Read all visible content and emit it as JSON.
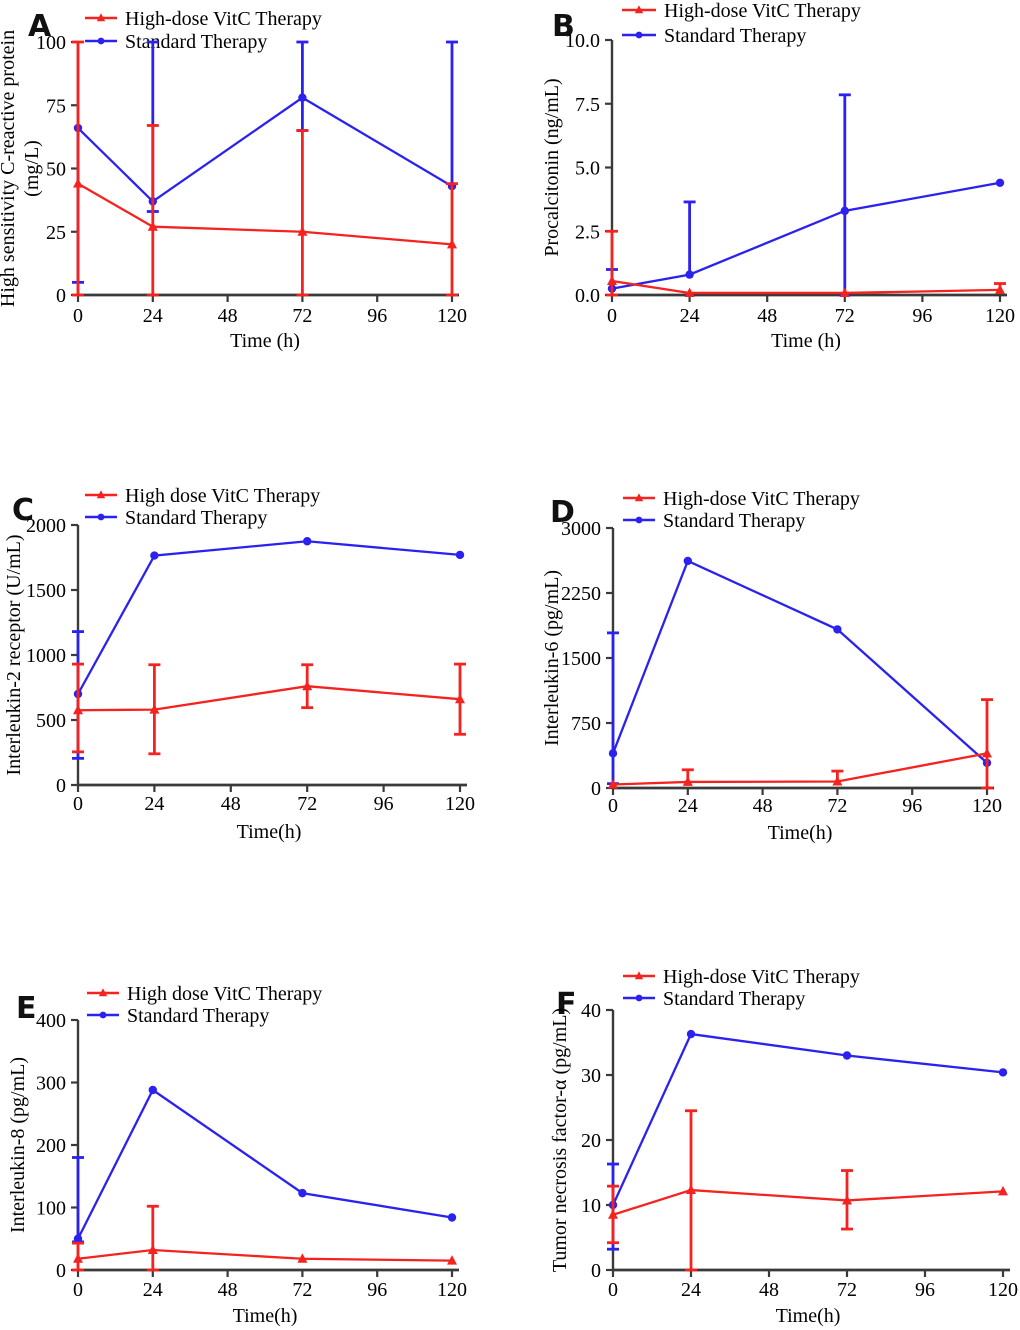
{
  "figure_title": "",
  "colors": {
    "vitc_red": "#f5231f",
    "standard_blue": "#2b22ef",
    "axis": "#3a3a3a",
    "text": "#000000",
    "background": "#ffffff"
  },
  "chart_data": [
    {
      "type": "line",
      "panel_label": "A",
      "xlabel": "Time (h)",
      "ylabel_lines": [
        "High sensitivity C-reactive protein",
        "(mg/L)"
      ],
      "x": [
        0,
        24,
        72,
        120
      ],
      "xlim": [
        0,
        120
      ],
      "xticks": [
        0,
        24,
        48,
        72,
        96,
        120
      ],
      "xtick_labels": [
        "0",
        "24",
        "48",
        "72",
        "96",
        "120"
      ],
      "ylim": [
        0,
        100
      ],
      "yticks": [
        0,
        25,
        50,
        75,
        100
      ],
      "ytick_labels": [
        "0",
        "25",
        "50",
        "75",
        "100"
      ],
      "grid": false,
      "legend_position": "top-left",
      "series": [
        {
          "name": "High-dose VitC Therapy",
          "color_key": "vitc_red",
          "marker": "triangle",
          "values": [
            44,
            27,
            25,
            20
          ],
          "err_lo": [
            0,
            0,
            0,
            0
          ],
          "err_hi": [
            100,
            67,
            65,
            44
          ]
        },
        {
          "name": "Standard Therapy",
          "color_key": "standard_blue",
          "marker": "circle",
          "values": [
            66,
            37,
            78,
            43
          ],
          "err_lo": [
            5,
            33,
            65,
            43
          ],
          "err_hi": [
            66,
            100,
            100,
            100
          ]
        }
      ]
    },
    {
      "type": "line",
      "panel_label": "B",
      "xlabel": "Time (h)",
      "ylabel_lines": [
        "Procalcitonin (ng/mL)"
      ],
      "x": [
        0,
        24,
        72,
        120
      ],
      "xlim": [
        0,
        120
      ],
      "xticks": [
        0,
        24,
        48,
        72,
        96,
        120
      ],
      "xtick_labels": [
        "0",
        "24",
        "48",
        "72",
        "96",
        "120"
      ],
      "ylim": [
        0,
        10
      ],
      "yticks": [
        0,
        2.5,
        5,
        7.5,
        10
      ],
      "ytick_labels": [
        "0.0",
        "2.5",
        "5.0",
        "7.5",
        "10.0"
      ],
      "grid": false,
      "legend_position": "top-left",
      "series": [
        {
          "name": "High-dose VitC Therapy",
          "color_key": "vitc_red",
          "marker": "triangle",
          "values": [
            0.55,
            0.08,
            0.08,
            0.2
          ],
          "err_lo": [
            0,
            0.08,
            0.08,
            0.2
          ],
          "err_hi": [
            2.5,
            0.08,
            0.08,
            0.45
          ]
        },
        {
          "name": "Standard Therapy",
          "color_key": "standard_blue",
          "marker": "circle",
          "values": [
            0.25,
            0.8,
            3.3,
            4.4
          ],
          "err_lo": [
            0.25,
            0.8,
            0,
            4.4
          ],
          "err_hi": [
            1.0,
            3.65,
            7.85,
            4.4
          ]
        }
      ]
    },
    {
      "type": "line",
      "panel_label": "C",
      "xlabel": "Time(h)",
      "ylabel_lines": [
        "Interleukin-2 receptor (U/mL)"
      ],
      "x": [
        0,
        24,
        72,
        120
      ],
      "xlim": [
        0,
        120
      ],
      "xticks": [
        0,
        24,
        48,
        72,
        96,
        120
      ],
      "xtick_labels": [
        "0",
        "24",
        "48",
        "72",
        "96",
        "120"
      ],
      "ylim": [
        0,
        2000
      ],
      "yticks": [
        0,
        500,
        1000,
        1500,
        2000
      ],
      "ytick_labels": [
        "0",
        "500",
        "1000",
        "1500",
        "2000"
      ],
      "grid": false,
      "legend_position": "top-left",
      "series": [
        {
          "name": "High dose VitC Therapy",
          "color_key": "vitc_red",
          "marker": "triangle",
          "values": [
            575,
            580,
            760,
            660
          ],
          "err_lo": [
            255,
            240,
            595,
            390
          ],
          "err_hi": [
            930,
            925,
            925,
            930
          ]
        },
        {
          "name": "Standard Therapy",
          "color_key": "standard_blue",
          "marker": "circle",
          "values": [
            700,
            1765,
            1875,
            1770
          ],
          "err_lo": [
            205,
            1765,
            1875,
            1770
          ],
          "err_hi": [
            1180,
            1765,
            1875,
            1770
          ]
        }
      ]
    },
    {
      "type": "line",
      "panel_label": "D",
      "xlabel": "Time(h)",
      "ylabel_lines": [
        "Interleukin-6  (pg/mL)"
      ],
      "x": [
        0,
        24,
        72,
        120
      ],
      "xlim": [
        0,
        120
      ],
      "xticks": [
        0,
        24,
        48,
        72,
        96,
        120
      ],
      "xtick_labels": [
        "0",
        "24",
        "48",
        "72",
        "96",
        "120"
      ],
      "ylim": [
        0,
        3000
      ],
      "yticks": [
        0,
        750,
        1500,
        2250,
        3000
      ],
      "ytick_labels": [
        "0",
        "750",
        "1500",
        "2250",
        "3000"
      ],
      "grid": false,
      "legend_position": "top-left",
      "series": [
        {
          "name": "High-dose VitC Therapy",
          "color_key": "vitc_red",
          "marker": "triangle",
          "values": [
            40,
            70,
            75,
            400
          ],
          "err_lo": [
            40,
            70,
            75,
            0
          ],
          "err_hi": [
            40,
            210,
            195,
            1020
          ]
        },
        {
          "name": "Standard Therapy",
          "color_key": "standard_blue",
          "marker": "circle",
          "values": [
            400,
            2620,
            1830,
            290
          ],
          "err_lo": [
            50,
            2620,
            1830,
            290
          ],
          "err_hi": [
            1790,
            2620,
            1830,
            290
          ]
        }
      ]
    },
    {
      "type": "line",
      "panel_label": "E",
      "xlabel": "Time(h)",
      "ylabel_lines": [
        "Interleukin-8  (pg/mL)"
      ],
      "x": [
        0,
        24,
        72,
        120
      ],
      "xlim": [
        0,
        120
      ],
      "xticks": [
        0,
        24,
        48,
        72,
        96,
        120
      ],
      "xtick_labels": [
        "0",
        "24",
        "48",
        "72",
        "96",
        "120"
      ],
      "ylim": [
        0,
        400
      ],
      "yticks": [
        0,
        100,
        200,
        300,
        400
      ],
      "ytick_labels": [
        "0",
        "100",
        "200",
        "300",
        "400"
      ],
      "grid": false,
      "legend_position": "top-left",
      "series": [
        {
          "name": "High dose VitC Therapy",
          "color_key": "vitc_red",
          "marker": "triangle",
          "values": [
            18,
            32,
            18,
            15
          ],
          "err_lo": [
            0,
            0,
            18,
            15
          ],
          "err_hi": [
            43,
            102,
            18,
            15
          ]
        },
        {
          "name": "Standard Therapy",
          "color_key": "standard_blue",
          "marker": "circle",
          "values": [
            50,
            288,
            123,
            84
          ],
          "err_lo": [
            45,
            288,
            123,
            84
          ],
          "err_hi": [
            180,
            288,
            123,
            84
          ]
        }
      ]
    },
    {
      "type": "line",
      "panel_label": "F",
      "xlabel": "Time(h)",
      "ylabel_lines": [
        "Tumor necrosis factor-α (pg/mL)"
      ],
      "x": [
        0,
        24,
        72,
        120
      ],
      "xlim": [
        0,
        120
      ],
      "xticks": [
        0,
        24,
        48,
        72,
        96,
        120
      ],
      "xtick_labels": [
        "0",
        "24",
        "48",
        "72",
        "96",
        "120"
      ],
      "ylim": [
        0,
        40
      ],
      "yticks": [
        0,
        10,
        20,
        30,
        40
      ],
      "ytick_labels": [
        "0",
        "10",
        "20",
        "30",
        "40"
      ],
      "grid": false,
      "legend_position": "top-left",
      "series": [
        {
          "name": "High-dose VitC Therapy",
          "color_key": "vitc_red",
          "marker": "triangle",
          "values": [
            8.5,
            12.3,
            10.7,
            12.1
          ],
          "err_lo": [
            4.2,
            0,
            6.3,
            12.1
          ],
          "err_hi": [
            12.9,
            24.5,
            15.3,
            12.1
          ]
        },
        {
          "name": "Standard Therapy",
          "color_key": "standard_blue",
          "marker": "circle",
          "values": [
            10,
            36.3,
            33,
            30.4
          ],
          "err_lo": [
            3.2,
            36.3,
            33,
            30.4
          ],
          "err_hi": [
            16.3,
            36.3,
            33,
            30.4
          ]
        }
      ]
    }
  ]
}
